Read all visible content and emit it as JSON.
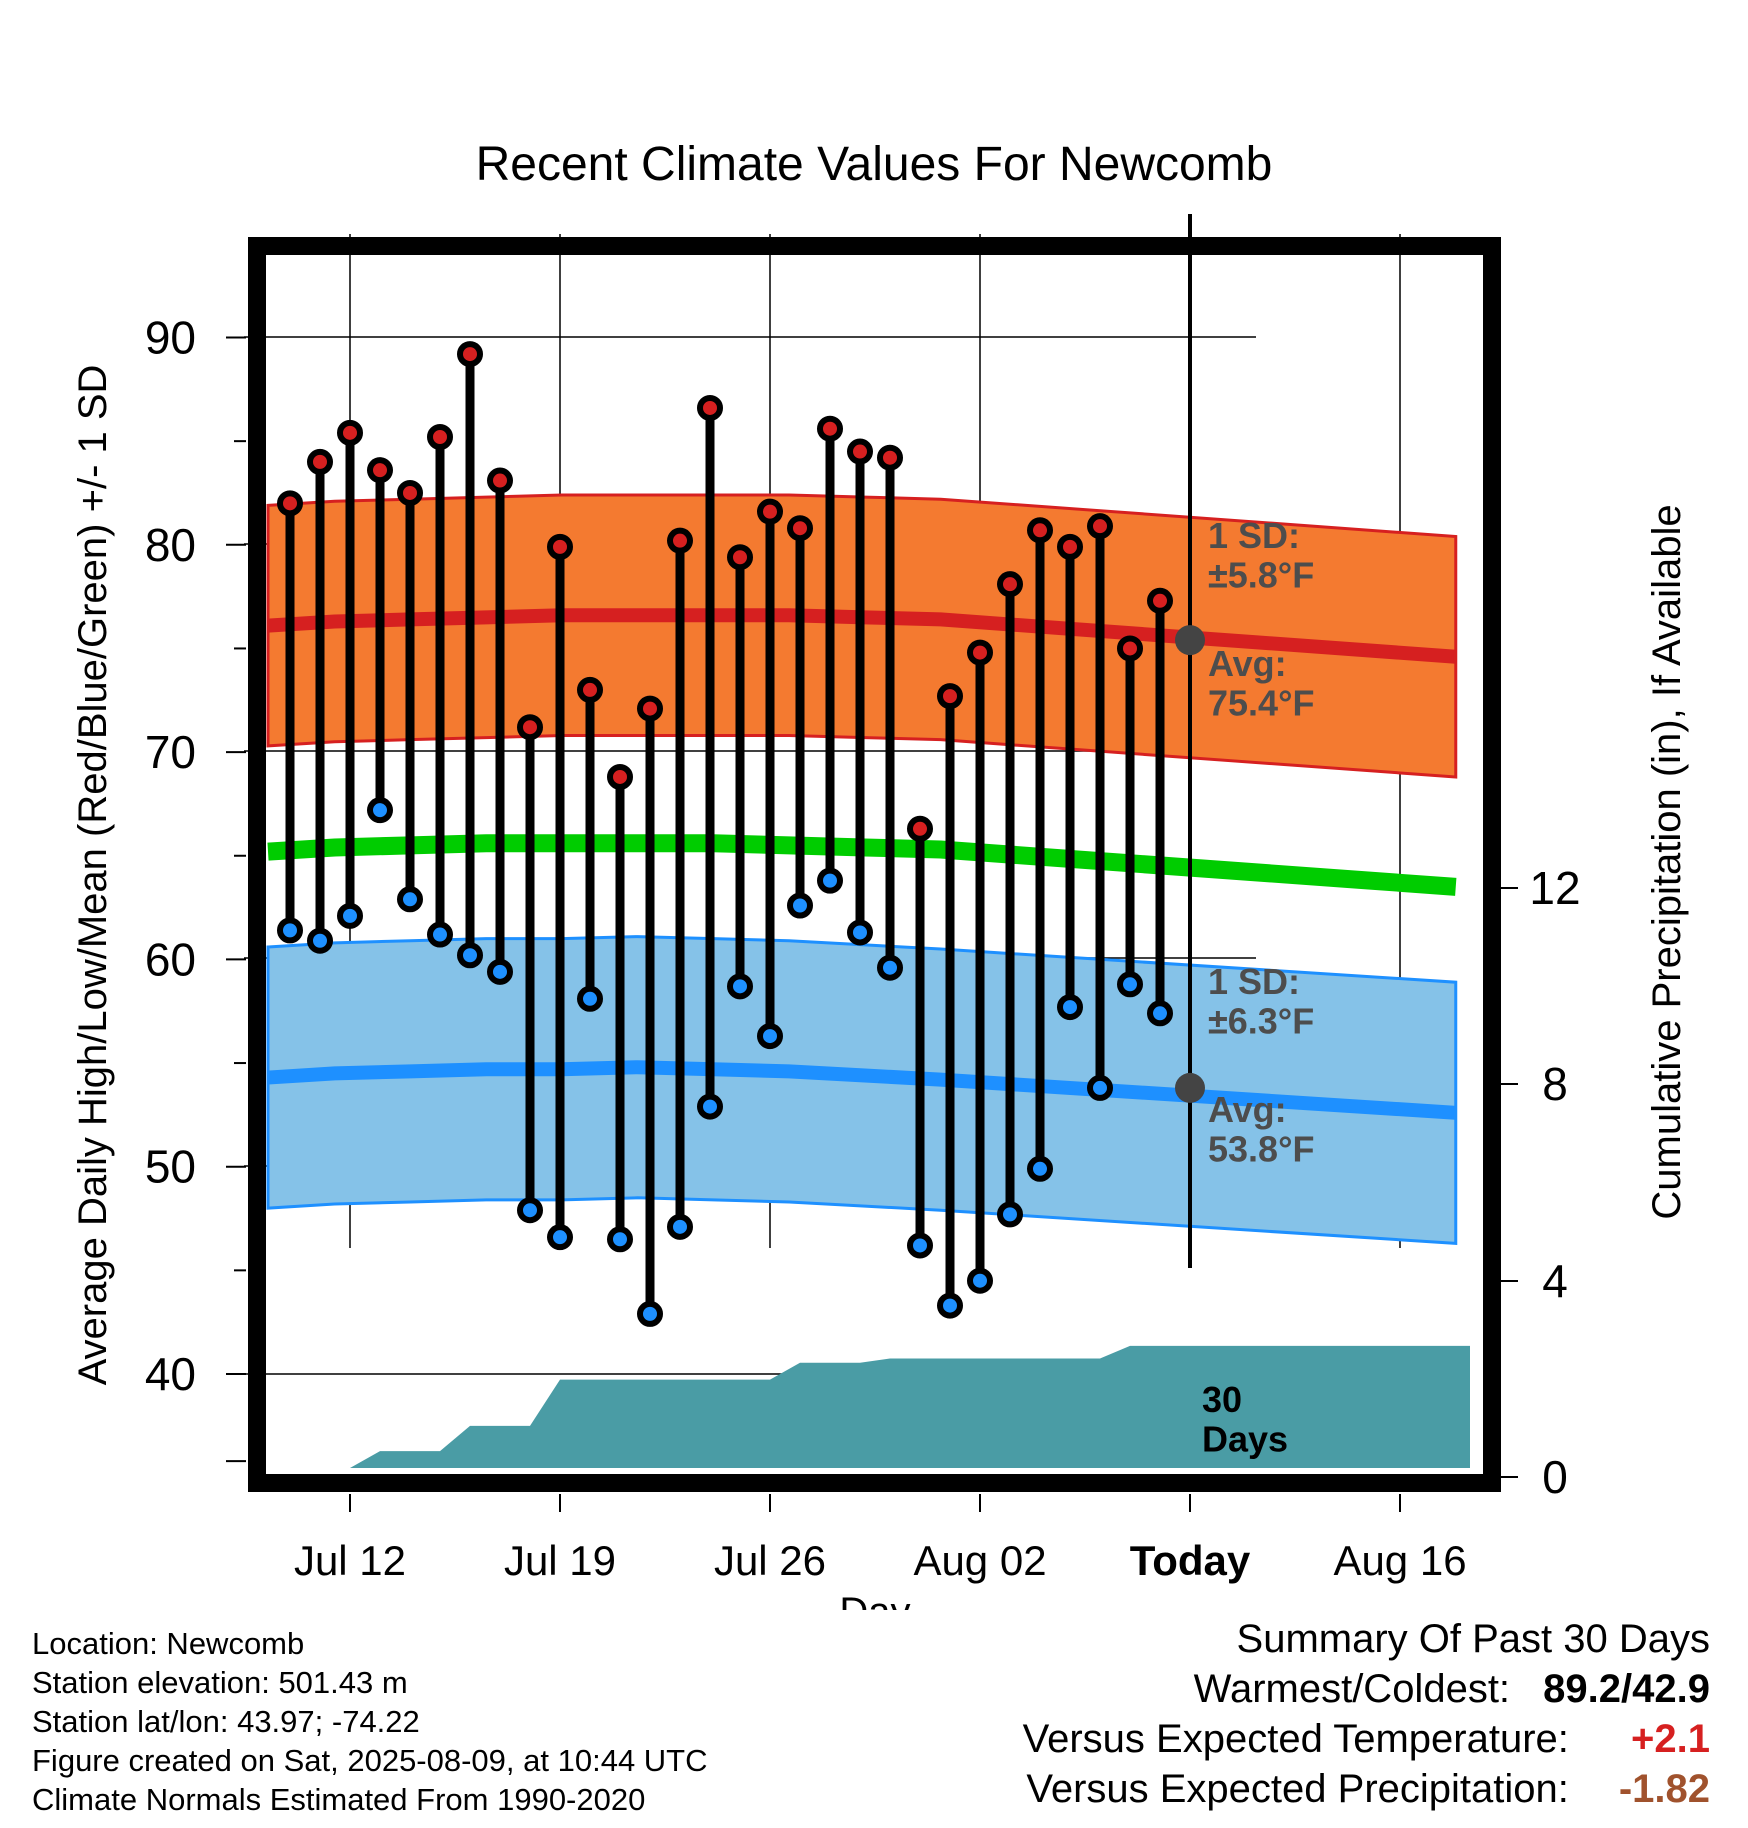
{
  "chart_data": {
    "type": "line",
    "title": "Recent Climate Values For Newcomb",
    "xlabel": "Day",
    "ylabel": "Average Daily High/Low/Mean (Red/Blue/Green) +/- 1 SD",
    "y2label": "Cumulative Precipitation (in), If Available",
    "x_ticks": [
      "Jul 12",
      "Jul 19",
      "Jul 26",
      "Aug 02",
      "Today",
      "Aug 16"
    ],
    "y_ticks": [
      "40",
      "50",
      "60",
      "70",
      "80",
      "90"
    ],
    "y2_ticks": [
      "0",
      "4",
      "8",
      "12"
    ],
    "ylim": [
      35.3,
      94.5
    ],
    "y2lim": [
      0,
      24
    ],
    "days": [
      "Jul 10",
      "Jul 11",
      "Jul 12",
      "Jul 13",
      "Jul 14",
      "Jul 15",
      "Jul 16",
      "Jul 17",
      "Jul 18",
      "Jul 19",
      "Jul 20",
      "Jul 21",
      "Jul 22",
      "Jul 23",
      "Jul 24",
      "Jul 25",
      "Jul 26",
      "Jul 27",
      "Jul 28",
      "Jul 29",
      "Jul 30",
      "Jul 31",
      "Aug 01",
      "Aug 02",
      "Aug 03",
      "Aug 04",
      "Aug 05",
      "Aug 06",
      "Aug 07",
      "Aug 08"
    ],
    "daily_high": [
      82.0,
      84.0,
      85.4,
      83.6,
      82.5,
      85.2,
      89.2,
      83.1,
      71.2,
      79.9,
      73.0,
      68.8,
      72.1,
      80.2,
      86.6,
      79.4,
      81.6,
      80.8,
      85.6,
      84.5,
      84.2,
      66.3,
      72.7,
      74.8,
      78.1,
      80.7,
      79.9,
      80.9,
      75.0,
      77.3
    ],
    "daily_low": [
      61.4,
      60.9,
      62.1,
      67.2,
      62.9,
      61.2,
      60.2,
      59.4,
      47.9,
      46.6,
      58.1,
      46.5,
      42.9,
      47.1,
      52.9,
      58.7,
      56.3,
      62.6,
      63.8,
      61.3,
      59.6,
      46.2,
      43.3,
      44.5,
      47.7,
      49.9,
      57.7,
      53.8,
      58.8,
      57.4
    ],
    "normal_high": [
      76.1,
      76.3,
      76.4,
      76.5,
      76.6,
      76.6,
      76.6,
      76.6,
      76.5,
      76.4,
      74.6
    ],
    "normal_high_x": [
      -2.2,
      0,
      2.5,
      5,
      7.5,
      10,
      12.5,
      15,
      17.5,
      20,
      37
    ],
    "normal_low": [
      54.3,
      54.5,
      54.6,
      54.7,
      54.7,
      54.8,
      54.7,
      54.6,
      54.4,
      54.2,
      52.6
    ],
    "normal_low_x": [
      -2.2,
      0,
      2.5,
      5,
      7.5,
      10,
      12.5,
      15,
      17.5,
      20,
      37
    ],
    "normal_mean": [
      65.2,
      65.4,
      65.5,
      65.6,
      65.6,
      65.6,
      65.6,
      65.5,
      65.4,
      65.3,
      63.5
    ],
    "normal_mean_x": [
      -2.2,
      0,
      2.5,
      5,
      7.5,
      10,
      12.5,
      15,
      17.5,
      20,
      37
    ],
    "high_sd": 5.8,
    "low_sd": 6.3,
    "precip_cumulative": [
      0,
      0,
      0,
      0.4,
      0.4,
      0.4,
      1.0,
      1.0,
      1.0,
      2.1,
      2.1,
      2.1,
      2.1,
      2.1,
      2.1,
      2.1,
      2.1,
      2.5,
      2.5,
      2.5,
      2.6,
      2.6,
      2.6,
      2.6,
      2.6,
      2.6,
      2.6,
      2.6,
      2.9,
      2.9,
      2.9
    ],
    "today_index": 30,
    "annotations": {
      "high_sd": {
        "line1": "1 SD:",
        "line2": "±5.8°F"
      },
      "high_avg": {
        "line1": "Avg:",
        "line2": "75.4°F"
      },
      "low_sd": {
        "line1": "1 SD:",
        "line2": "±6.3°F"
      },
      "low_avg": {
        "line1": "Avg:",
        "line2": "53.8°F"
      },
      "window": {
        "line1": "30",
        "line2": "Days"
      }
    },
    "today_avg_high": 75.4,
    "today_avg_low": 53.8,
    "colors": {
      "high_band": "#f47a30",
      "high_line": "#d62020",
      "low_band": "#85c2e8",
      "low_line": "#1e90ff",
      "mean_line": "#00cc00",
      "precip": "#4a9ca5",
      "high_marker": "#d62020",
      "low_marker": "#1e90ff",
      "today_marker": "#444444",
      "annotation_text": "#4d4d4d"
    }
  },
  "footer": {
    "location": "Location: Newcomb",
    "elevation": "Station elevation: 501.43 m",
    "latlon": "Station lat/lon: 43.97; -74.22",
    "created": "Figure created on Sat, 2025-08-09, at 10:44 UTC",
    "normals": "Climate Normals Estimated From 1990-2020"
  },
  "summary": {
    "heading": "Summary Of Past 30 Days",
    "warm_cold_label": "Warmest/Coldest:",
    "warm_cold_value": "89.2/42.9",
    "temp_label": "Versus Expected Temperature:",
    "temp_value": "+2.1",
    "temp_color": "#d62020",
    "precip_label": "Versus Expected Precipitation:",
    "precip_value": "-1.82",
    "precip_color": "#a0522d"
  }
}
